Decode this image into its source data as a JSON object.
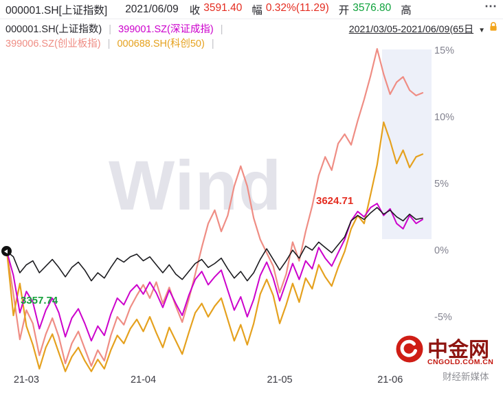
{
  "window": {
    "menu_icon": "⋯"
  },
  "header": {
    "symbol": "000001.SH[上证指数]",
    "date": "2021/06/09",
    "close_label": "收",
    "close_value": "3591.40",
    "chg_label": "幅",
    "chg_value": "0.32%(11.29)",
    "open_label": "开",
    "open_value": "3576.80",
    "high_label": "高"
  },
  "legend": {
    "sep": "|",
    "sh": "000001.SH(上证指数)",
    "sz": "399001.SZ(深证成指)",
    "cyb": "399006.SZ(创业板指)",
    "kc50": "000688.SH(科创50)"
  },
  "range_selector": {
    "text": "2021/03/05-2021/06/09(65日",
    "caret": "▼"
  },
  "watermark": "Wind",
  "footer": {
    "brand": "中金网",
    "domain": "CNGOLD.COM.CN",
    "slogan": "财经新媒体"
  },
  "colors": {
    "up": "#e42c20",
    "down": "#0fa23c",
    "sh_line": "#1b1b1f",
    "sz_line": "#cc00cc",
    "cyb_line": "#ef8d84",
    "kc50_line": "#e5a11e",
    "highlight_band": "#edf0f9",
    "lock_icon": "#f2a51c",
    "brand_red": "#cf1d15"
  },
  "chart_data": {
    "type": "line",
    "title": "",
    "x_range_label": "2021/03/05-2021/06/09(65日)",
    "unit": "percent_change",
    "num_points": 65,
    "grid": false,
    "ylim": [
      -9.5,
      16
    ],
    "legend_position": "top-left",
    "y_ticks": [
      {
        "label": "15%",
        "value": 15
      },
      {
        "label": "10%",
        "value": 10
      },
      {
        "label": "5%",
        "value": 5
      },
      {
        "label": "0%",
        "value": 0
      },
      {
        "label": "-5%",
        "value": -5
      }
    ],
    "x_ticks": [
      {
        "label": "21-03",
        "day": 3
      },
      {
        "label": "21-04",
        "day": 21
      },
      {
        "label": "21-05",
        "day": 42
      },
      {
        "label": "21-06",
        "day": 59
      }
    ],
    "draw_order": [
      "cyb",
      "kc50",
      "sz",
      "sh"
    ],
    "series": [
      {
        "id": "sh",
        "name": "000001.SH(上证指数)",
        "color": "#1b1b1f",
        "width": 1.6,
        "values": [
          0,
          -0.4,
          -1.6,
          -1,
          -0.7,
          -1.6,
          -1.1,
          -0.6,
          -1.2,
          -1.9,
          -1.2,
          -0.8,
          -1.4,
          -2.2,
          -1.6,
          -2,
          -1.2,
          -0.5,
          -0.8,
          -0.4,
          -0.2,
          -0.7,
          -0.4,
          -1,
          -1.6,
          -1,
          -1.7,
          -2.1,
          -1.5,
          -0.9,
          -0.6,
          -1.2,
          -0.9,
          -0.5,
          -1.3,
          -2,
          -1.5,
          -2.2,
          -1.6,
          -0.6,
          0.2,
          -0.6,
          -1.4,
          -0.7,
          0.1,
          -0.5,
          0.4,
          0.1,
          0.7,
          0.3,
          -0.1,
          0.5,
          1.1,
          2.3,
          2.7,
          2.4,
          2.9,
          3.3,
          2.8,
          3.1,
          2.6,
          2.3,
          2.8,
          2.4,
          2.5
        ]
      },
      {
        "id": "sz",
        "name": "399001.SZ(深证成指)",
        "color": "#cc00cc",
        "width": 2,
        "values": [
          0,
          -1.8,
          -4.6,
          -3,
          -3.8,
          -5.8,
          -4.4,
          -3.5,
          -4.6,
          -6.4,
          -5,
          -4.3,
          -5.4,
          -6.7,
          -5.6,
          -6.3,
          -4.7,
          -3.5,
          -4,
          -3,
          -2.5,
          -3.2,
          -2.3,
          -3.1,
          -4.2,
          -2.9,
          -3.9,
          -4.8,
          -3.3,
          -2.1,
          -1.5,
          -2.5,
          -1.9,
          -1.4,
          -2.9,
          -4.4,
          -3.4,
          -4.9,
          -3.6,
          -1.8,
          -0.8,
          -2,
          -3.7,
          -2.3,
          -0.9,
          -2.1,
          -0.7,
          -1.3,
          0.3,
          -0.5,
          -1.1,
          -0.1,
          0.9,
          2.3,
          3,
          2.6,
          3.3,
          3.6,
          2.7,
          3.2,
          2.1,
          1.7,
          2.7,
          2.1,
          2.4
        ]
      },
      {
        "id": "cyb",
        "name": "399006.SZ(创业板指)",
        "color": "#ef8d84",
        "width": 2.2,
        "values": [
          0,
          -3.2,
          -6.6,
          -4.4,
          -5.4,
          -7.8,
          -6.2,
          -5,
          -6.4,
          -8.4,
          -6.9,
          -6,
          -7.3,
          -8.6,
          -7.4,
          -8.2,
          -6.3,
          -4.9,
          -5.5,
          -4.2,
          -3.3,
          -2.5,
          -3.5,
          -2.3,
          -3.9,
          -2.7,
          -4.1,
          -5.3,
          -3.6,
          -1.7,
          0.3,
          2.1,
          3.1,
          1.5,
          2.7,
          4.9,
          6.4,
          4.9,
          2.5,
          0.9,
          -0.1,
          -1.1,
          -3.1,
          -1.7,
          0.7,
          -0.7,
          1.5,
          3.4,
          5.7,
          7.1,
          6.1,
          8.1,
          8.8,
          8,
          9.8,
          11.4,
          13.2,
          15.2,
          13.3,
          11.8,
          12.7,
          13.1,
          12.1,
          11.7,
          11.9
        ]
      },
      {
        "id": "kc50",
        "name": "000688.SH(科创50)",
        "color": "#e5a11e",
        "width": 2.2,
        "values": [
          0,
          -4.8,
          -2.4,
          -5.6,
          -7,
          -8.8,
          -7.2,
          -6.2,
          -7.6,
          -9,
          -7.9,
          -7.2,
          -8.2,
          -9,
          -8.1,
          -8.8,
          -7.4,
          -6.3,
          -6.9,
          -5.8,
          -5.1,
          -6,
          -4.9,
          -6.1,
          -7.2,
          -5.7,
          -6.7,
          -7.7,
          -6.1,
          -4.6,
          -3.9,
          -4.9,
          -4.1,
          -3.5,
          -5.1,
          -6.7,
          -5.5,
          -7,
          -5.4,
          -3.2,
          -2.1,
          -3.3,
          -5.4,
          -4,
          -2.4,
          -3.8,
          -2,
          -2.8,
          -1,
          -1.9,
          -2.6,
          -1.2,
          0,
          1.7,
          2.7,
          2.1,
          4.3,
          6.5,
          9.7,
          8.3,
          6.6,
          7.6,
          6.3,
          7.1,
          7.3
        ]
      }
    ],
    "annotations": {
      "high": {
        "text": "3624.71",
        "series": "sh",
        "color": "#e42c20"
      },
      "low": {
        "text": "3357.74",
        "series": "sh",
        "color": "#14a03a"
      }
    }
  }
}
